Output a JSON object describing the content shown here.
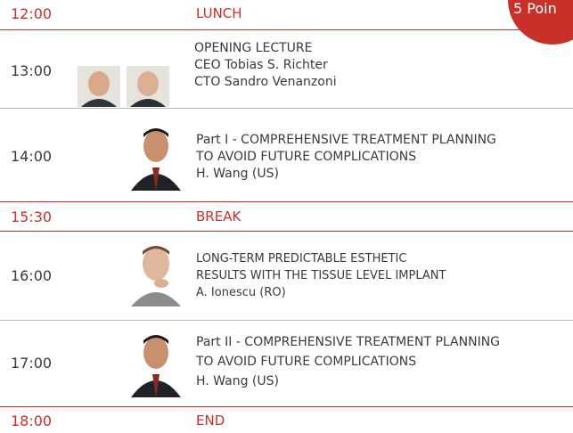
{
  "badge": "5 Poin",
  "rows": [
    {
      "time": "12:00",
      "lines": [
        "LUNCH"
      ]
    },
    {
      "time": "13:00",
      "lines": [
        "OPENING LECTURE",
        "CEO Tobias S. Richter",
        "CTO Sandro Venanzoni"
      ]
    },
    {
      "time": "14:00",
      "lines": [
        "Part I -  COMPREHENSIVE TREATMENT PLANNING",
        "TO AVOID FUTURE COMPLICATIONS",
        "H. Wang (US)"
      ]
    },
    {
      "time": "15:30",
      "lines": [
        "BREAK"
      ]
    },
    {
      "time": "16:00",
      "lines": [
        "LONG-TERM PREDICTABLE ESTHETIC",
        "RESULTS WITH THE TISSUE LEVEL IMPLANT",
        "A. Ionescu (RO)"
      ]
    },
    {
      "time": "17:00",
      "lines": [
        "Part II -  COMPREHENSIVE TREATMENT PLANNING",
        "TO AVOID FUTURE COMPLICATIONS",
        "H. Wang (US)"
      ]
    },
    {
      "time": "18:00",
      "lines": [
        "END"
      ]
    }
  ]
}
